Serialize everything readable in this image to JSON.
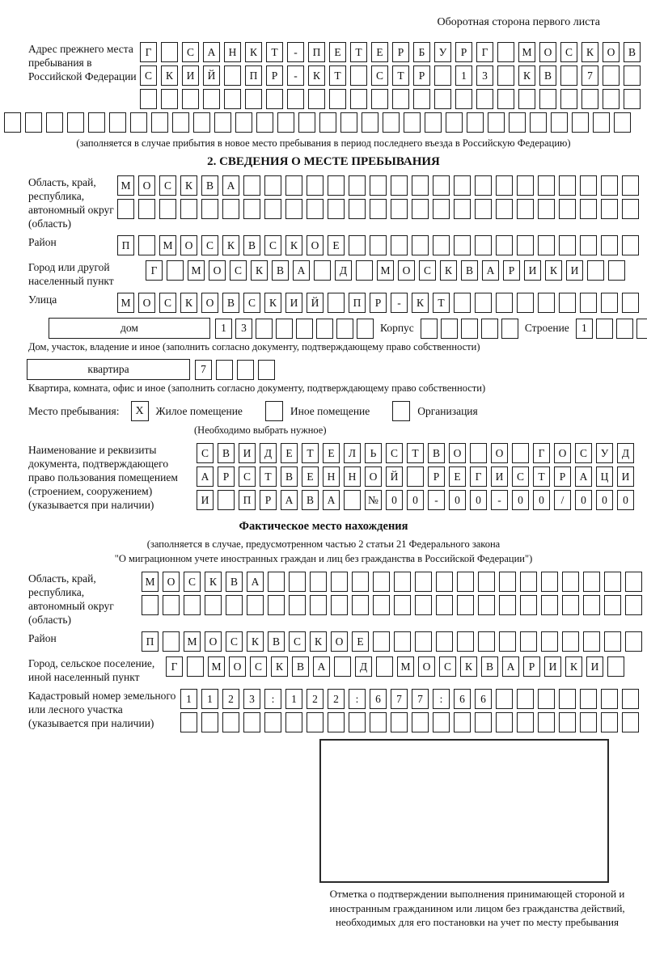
{
  "page": {
    "top_note": "Оборотная сторона первого листа"
  },
  "address_prev": {
    "label": "Адрес прежнего места пребывания в Российской Федерации",
    "rows": [
      {
        "text": "Г САНКТ-ПЕТЕРБУРГ МОСКОВ",
        "len": 24
      },
      {
        "text": "СКИЙ ПР-КТ СТР 13 КВ 7",
        "len": 24
      },
      {
        "text": "",
        "len": 24
      }
    ],
    "row_full": {
      "text": "",
      "len": 30
    },
    "note": "(заполняется в случае прибытия в новое место пребывания в период последнего въезда в Российскую Федерацию)"
  },
  "section2": {
    "title": "2. СВЕДЕНИЯ О МЕСТЕ ПРЕБЫВАНИЯ",
    "oblast": {
      "label": "Область, край, республика, автономный округ (область)",
      "row1": {
        "text": "МОСКВА",
        "len": 25
      },
      "row2": {
        "text": "",
        "len": 25
      }
    },
    "raion": {
      "label": "Район",
      "row": {
        "text": "П МОСКВСКОЕ",
        "len": 25
      }
    },
    "gorod": {
      "label": "Город или другой населенный пункт",
      "row": {
        "text": "Г МОСКВА Д МОСКВАРИКИ",
        "len": 23
      }
    },
    "ulitsa": {
      "label": "Улица",
      "row": {
        "text": "МОСКОВСКИЙ ПР-КТ",
        "len": 25
      }
    },
    "dom": {
      "box_label": "дом",
      "cells": {
        "text": "13",
        "len": 8
      },
      "korpus_label": "Корпус",
      "korpus_cells": {
        "text": "",
        "len": 5
      },
      "stroenie_label": "Строение",
      "stroenie_cells": {
        "text": "1",
        "len": 4
      },
      "note": "Дом, участок, владение и иное (заполнить согласно документу, подтверждающему право собственности)"
    },
    "kvartira": {
      "box_label": "квартира",
      "cells": {
        "text": "7",
        "len": 4
      },
      "note": "Квартира, комната, офис и иное (заполнить согласно документу, подтверждающему право собственности)"
    },
    "mesto": {
      "label": "Место пребывания:",
      "options": [
        {
          "label": "Жилое помещение",
          "checked": "X"
        },
        {
          "label": "Иное помещение",
          "checked": ""
        },
        {
          "label": "Организация",
          "checked": ""
        }
      ],
      "note": "(Необходимо выбрать нужное)"
    },
    "doc": {
      "label": "Наименование и реквизиты документа, подтверждающего право пользования помещением (строением, сооружением) (указывается при наличии)",
      "rows": [
        {
          "text": "СВИДЕТЕЛЬСТВО О ГОСУД",
          "len": 21
        },
        {
          "text": "АРСТВЕННОЙ РЕГИСТРАЦИ",
          "len": 21
        },
        {
          "text": "И ПРАВА №00-00-00/000",
          "len": 21
        }
      ]
    }
  },
  "fact": {
    "title": "Фактическое место нахождения",
    "note1": "(заполняется в случае, предусмотренном частью 2 статьи 21 Федерального закона",
    "note2": "\"О миграционном учете иностранных граждан и лиц без гражданства в Российской Федерации\")",
    "oblast": {
      "label": "Область, край, республика, автономный округ (область)",
      "row1": {
        "text": "МОСКВА",
        "len": 24
      },
      "row2": {
        "text": "",
        "len": 24
      }
    },
    "raion": {
      "label": "Район",
      "row": {
        "text": "П МОСКВСКОЕ",
        "len": 24
      }
    },
    "gorod": {
      "label": "Город, сельское поселение, иной населенный пункт",
      "row": {
        "text": "Г МОСКВА Д МОСКВАРИКИ",
        "len": 22
      }
    },
    "kadastr": {
      "label": "Кадастровый номер земельного или лесного участка (указывается при наличии)",
      "row1": {
        "text": "1123:122:677:66",
        "len": 22
      },
      "row2": {
        "text": "",
        "len": 22
      }
    },
    "mark_caption": "Отметка о подтверждении выполнения принимающей стороной и иностранным гражданином или лицом без гражданства действий, необходимых для его постановки на учет по месту пребывания"
  }
}
